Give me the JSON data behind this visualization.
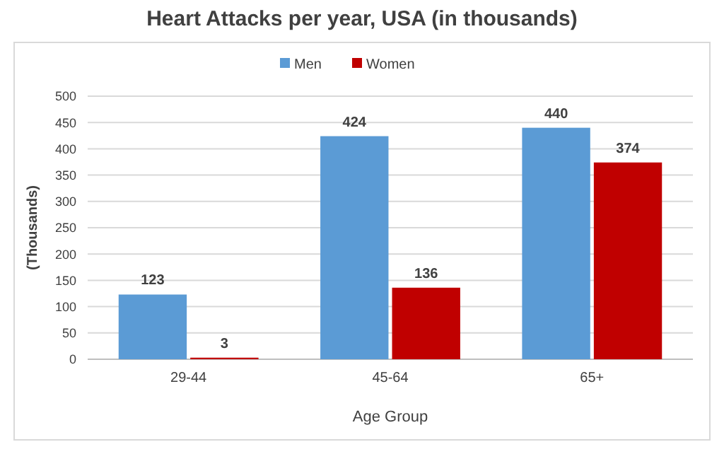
{
  "chart_data": {
    "type": "bar",
    "title": "Heart Attacks per year, USA (in thousands)",
    "xlabel": "Age Group",
    "ylabel": "(Thousands)",
    "categories": [
      "29-44",
      "45-64",
      "65+"
    ],
    "series": [
      {
        "name": "Men",
        "color": "#5b9bd5",
        "values": [
          123,
          424,
          440
        ]
      },
      {
        "name": "Women",
        "color": "#c00000",
        "values": [
          3,
          136,
          374
        ]
      }
    ],
    "ylim": [
      0,
      500
    ],
    "yticks": [
      0,
      50,
      100,
      150,
      200,
      250,
      300,
      350,
      400,
      450,
      500
    ],
    "grid": "y",
    "legend": "top",
    "data_labels": true
  }
}
